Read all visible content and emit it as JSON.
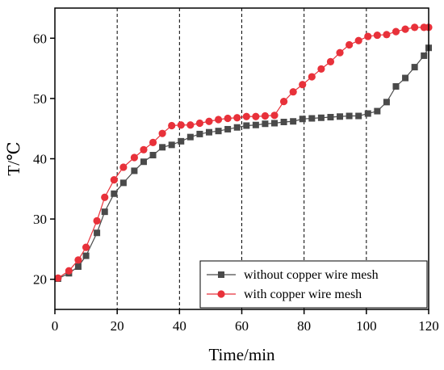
{
  "chart_data": {
    "type": "line",
    "xlabel": "Time/min",
    "ylabel": "T/℃",
    "xlim": [
      0,
      120
    ],
    "ylim": [
      15,
      65
    ],
    "xticks": [
      0,
      20,
      40,
      60,
      80,
      100,
      120
    ],
    "yticks": [
      20,
      30,
      40,
      50,
      60
    ],
    "vlines": [
      20,
      40,
      60,
      80,
      100
    ],
    "legend_position": "bottom-right",
    "series": [
      {
        "name": "without copper wire mesh",
        "color": "#4a4a4a",
        "marker": "square",
        "x": [
          1,
          4.5,
          7.5,
          10,
          13.5,
          16,
          19,
          22,
          25.5,
          28.5,
          31.5,
          34.5,
          37.5,
          40.5,
          43.5,
          46.5,
          49.5,
          52.5,
          55.5,
          58.5,
          61.5,
          64.5,
          67.5,
          70.5,
          73.5,
          76.5,
          79.5,
          82.5,
          85.5,
          88.5,
          91.5,
          94.5,
          97.5,
          100.5,
          103.5,
          106.5,
          109.5,
          112.5,
          115.5,
          118.5,
          120
        ],
        "y": [
          20.1,
          21.0,
          22.1,
          23.9,
          27.7,
          31.2,
          34.2,
          36.0,
          38.0,
          39.5,
          40.6,
          41.9,
          42.3,
          42.9,
          43.6,
          44.1,
          44.4,
          44.6,
          44.9,
          45.2,
          45.5,
          45.6,
          45.8,
          45.9,
          46.1,
          46.2,
          46.6,
          46.7,
          46.8,
          46.9,
          47.0,
          47.1,
          47.1,
          47.5,
          47.9,
          49.4,
          52.0,
          53.4,
          55.2,
          57.1,
          58.4
        ]
      },
      {
        "name": "with copper wire mesh",
        "color": "#e8313a",
        "marker": "circle",
        "x": [
          1,
          4.5,
          7.5,
          10,
          13.5,
          16,
          19,
          22,
          25.5,
          28.5,
          31.5,
          34.5,
          37.5,
          40.5,
          43.5,
          46.5,
          49.5,
          52.5,
          55.5,
          58.5,
          61.5,
          64.5,
          67.5,
          70.5,
          73.5,
          76.5,
          79.5,
          82.5,
          85.5,
          88.5,
          91.5,
          94.5,
          97.5,
          100.5,
          103.5,
          106.5,
          109.5,
          112.5,
          115.5,
          118.5,
          120
        ],
        "y": [
          20.2,
          21.4,
          23.2,
          25.3,
          29.7,
          33.6,
          36.5,
          38.6,
          40.2,
          41.5,
          42.7,
          44.2,
          45.5,
          45.6,
          45.6,
          45.9,
          46.2,
          46.5,
          46.7,
          46.8,
          47.0,
          47.0,
          47.1,
          47.2,
          49.5,
          51.1,
          52.3,
          53.6,
          54.9,
          56.1,
          57.6,
          58.9,
          59.6,
          60.3,
          60.5,
          60.6,
          61.1,
          61.5,
          61.8,
          61.8,
          61.8
        ]
      }
    ]
  }
}
